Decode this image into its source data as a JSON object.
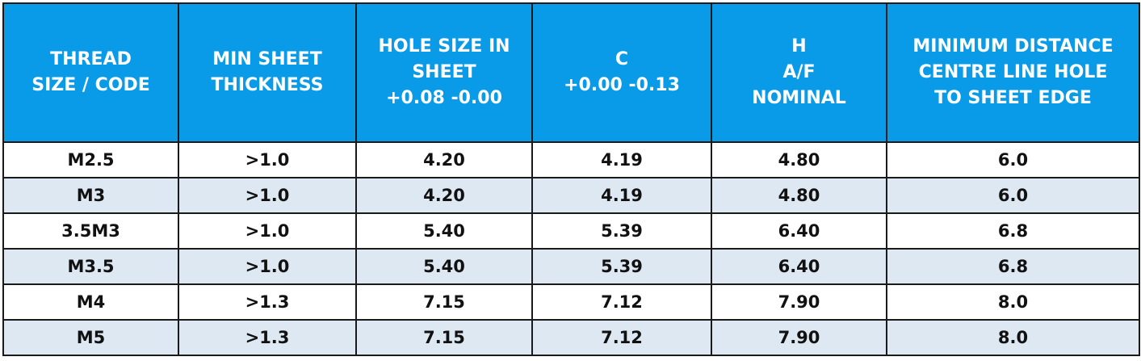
{
  "table": {
    "headers": [
      "THREAD\nSIZE / CODE",
      "MIN SHEET\nTHICKNESS",
      "HOLE SIZE IN\nSHEET\n+0.08 -0.00",
      "C\n+0.00 -0.13",
      "H\nA/F\nNOMINAL",
      "MINIMUM DISTANCE\nCENTRE LINE HOLE\nTO SHEET EDGE"
    ],
    "rows": [
      [
        "M2.5",
        ">1.0",
        "4.20",
        "4.19",
        "4.80",
        "6.0"
      ],
      [
        "M3",
        ">1.0",
        "4.20",
        "4.19",
        "4.80",
        "6.0"
      ],
      [
        "3.5M3",
        ">1.0",
        "5.40",
        "5.39",
        "6.40",
        "6.8"
      ],
      [
        "M3.5",
        ">1.0",
        "5.40",
        "5.39",
        "6.40",
        "6.8"
      ],
      [
        "M4",
        ">1.3",
        "7.15",
        "7.12",
        "7.90",
        "8.0"
      ],
      [
        "M5",
        ">1.3",
        "7.15",
        "7.12",
        "7.90",
        "8.0"
      ]
    ]
  }
}
